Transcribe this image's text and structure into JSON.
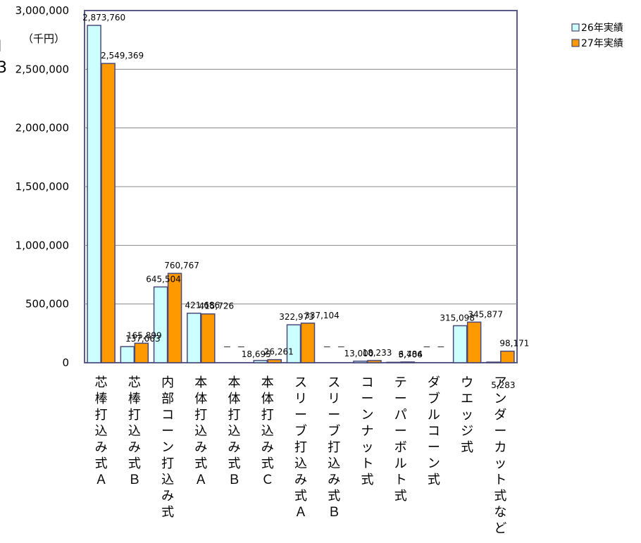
{
  "side_fragments": [
    "I",
    "3"
  ],
  "chart_data": {
    "type": "bar",
    "unit_label": "（千円）",
    "ylim": [
      0,
      3000000
    ],
    "yticks": [
      "0",
      "500,000",
      "1,000,000",
      "1,500,000",
      "2,000,000",
      "2,500,000",
      "3,000,000"
    ],
    "ytick_values": [
      0,
      500000,
      1000000,
      1500000,
      2000000,
      2500000,
      3000000
    ],
    "grid": true,
    "legend_position": "top-right",
    "categories": [
      "芯棒打込み式Ａ",
      "芯棒打込み式Ｂ",
      "内部コーン打込み式",
      "本体打込み式Ａ",
      "本体打込み式Ｂ",
      "本体打込み式Ｃ",
      "スリーブ打込み式Ａ",
      "スリーブ打込み式Ｂ",
      "コーンナット式",
      "テーパーボルト式",
      "ダブルコーン式",
      "ウエッジ式",
      "アンダーカット式など"
    ],
    "series": [
      {
        "name": "26年実績",
        "color": "#ccffff",
        "values": [
          2873760,
          137063,
          645504,
          421686,
          null,
          18695,
          322973,
          null,
          13000,
          3706,
          null,
          315098,
          5283
        ],
        "labels": [
          "2,873,760",
          "137,063",
          "645,504",
          "421,686",
          "－",
          "18,695",
          "322,973",
          "－",
          "13,000",
          "3,706",
          "－",
          "315,098",
          "5,283"
        ]
      },
      {
        "name": "27年実績",
        "color": "#ff9900",
        "values": [
          2549369,
          165899,
          760767,
          415726,
          null,
          26261,
          337104,
          null,
          18233,
          6484,
          null,
          345877,
          98171
        ],
        "labels": [
          "2,549,369",
          "165,899",
          "760,767",
          "415,726",
          "－",
          "26,261",
          "337,104",
          "－",
          "18,233",
          "6,484",
          "－",
          "345,877",
          "98,171"
        ]
      }
    ]
  }
}
